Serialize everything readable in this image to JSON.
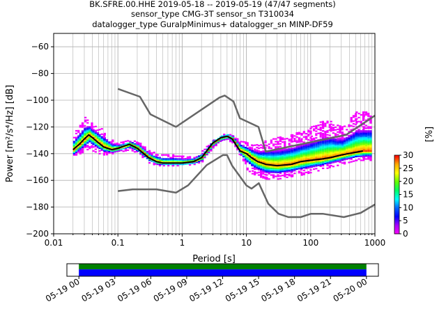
{
  "title": {
    "line1": "BK.SFRE.00.HHE   2019-05-18 -- 2019-05-19  (47/47 segments)",
    "line2": "sensor_type CMG-3T sensor_sn T310034",
    "line3": "datalogger_type GuralpMinimus+ datalogger_sn MINP-DF59"
  },
  "chart_data": [
    {
      "type": "heatmap",
      "kind": "probabilistic power spectral density",
      "xlabel": "Period [s]",
      "ylabel": "Power [m²/s⁴/Hz] [dB]",
      "xscale": "log",
      "xlim": [
        0.01,
        1000
      ],
      "ylim": [
        -200,
        -50
      ],
      "xticks": [
        0.01,
        0.1,
        1,
        10,
        100,
        1000
      ],
      "xtick_labels": [
        "0.01",
        "0.1",
        "1",
        "10",
        "100",
        "1000"
      ],
      "yticks": [
        -200,
        -180,
        -160,
        -140,
        -120,
        -100,
        -80,
        -60
      ],
      "ytick_labels": [
        "−200",
        "−180",
        "−160",
        "−140",
        "−120",
        "−100",
        "−80",
        "−60"
      ],
      "grid": true,
      "colorbar": {
        "label": "[%]",
        "min": 0,
        "max": 30,
        "ticks": [
          0,
          5,
          10,
          15,
          20,
          25,
          30
        ],
        "tick_labels": [
          "0",
          "5",
          "10",
          "15",
          "20",
          "25",
          "30"
        ],
        "colormap": [
          "#ff00ff",
          "#aa00ff",
          "#0000ff",
          "#0066ff",
          "#00ffff",
          "#00ff66",
          "#66ff00",
          "#ffff00",
          "#ffaa00",
          "#ff0000"
        ]
      },
      "mean_curve": {
        "color": "#000000",
        "x": [
          0.02,
          0.025,
          0.03,
          0.035,
          0.04,
          0.05,
          0.06,
          0.08,
          0.1,
          0.15,
          0.2,
          0.3,
          0.4,
          0.5,
          0.7,
          1.0,
          1.5,
          2,
          2.5,
          3,
          4,
          5,
          6,
          7,
          8,
          10,
          12,
          15,
          20,
          30,
          50,
          70,
          100,
          150,
          200,
          300,
          500,
          650
        ],
        "y": [
          -137,
          -133,
          -129,
          -126,
          -128,
          -132,
          -135,
          -137,
          -136,
          -133,
          -136,
          -143,
          -146,
          -147,
          -147,
          -147,
          -146,
          -143,
          -137,
          -132,
          -128,
          -127,
          -129,
          -134,
          -138,
          -140,
          -143,
          -146,
          -148,
          -149,
          -148,
          -146,
          -145,
          -144,
          -143,
          -141,
          -139,
          -138
        ]
      },
      "noise_models": {
        "color": "#666666",
        "high": {
          "x": [
            0.1,
            0.22,
            0.32,
            0.8,
            3.8,
            4.6,
            6.3,
            7.9,
            15.4,
            20,
            354.8,
            1000
          ],
          "y": [
            -91.5,
            -97.4,
            -110.5,
            -120,
            -98,
            -96.5,
            -101,
            -113.5,
            -120,
            -138.5,
            -126,
            -111.5
          ]
        },
        "low": {
          "x": [
            0.1,
            0.17,
            0.4,
            0.8,
            1.24,
            2.4,
            4.3,
            5,
            6,
            10,
            12,
            15.6,
            21.9,
            31.6,
            45,
            70,
            101,
            154,
            328,
            600,
            1000
          ],
          "y": [
            -168,
            -166.7,
            -166.7,
            -169.2,
            -163.7,
            -148.6,
            -141.1,
            -141.1,
            -149,
            -163.8,
            -166.2,
            -162.1,
            -177.5,
            -185,
            -187.5,
            -187.5,
            -185,
            -185,
            -187.5,
            -184.4,
            -178
          ]
        }
      },
      "density": {
        "columns": [
          {
            "period": 0.02,
            "min": -143,
            "max": -125,
            "mode": -137
          },
          {
            "period": 0.025,
            "min": -140,
            "max": -118,
            "mode": -133
          },
          {
            "period": 0.03,
            "min": -138,
            "max": -113,
            "mode": -129
          },
          {
            "period": 0.035,
            "min": -136,
            "max": -115,
            "mode": -126
          },
          {
            "period": 0.04,
            "min": -138,
            "max": -118,
            "mode": -128
          },
          {
            "period": 0.05,
            "min": -140,
            "max": -120,
            "mode": -132
          },
          {
            "period": 0.06,
            "min": -141,
            "max": -123,
            "mode": -135
          },
          {
            "period": 0.08,
            "min": -140,
            "max": -130,
            "mode": -137
          },
          {
            "period": 0.1,
            "min": -139,
            "max": -132,
            "mode": -136
          },
          {
            "period": 0.15,
            "min": -137,
            "max": -130,
            "mode": -133
          },
          {
            "period": 0.2,
            "min": -140,
            "max": -131,
            "mode": -136
          },
          {
            "period": 0.3,
            "min": -147,
            "max": -138,
            "mode": -143
          },
          {
            "period": 0.4,
            "min": -149,
            "max": -140,
            "mode": -146
          },
          {
            "period": 0.5,
            "min": -149,
            "max": -141,
            "mode": -147
          },
          {
            "period": 0.7,
            "min": -149,
            "max": -141,
            "mode": -147
          },
          {
            "period": 1.0,
            "min": -149,
            "max": -142,
            "mode": -147
          },
          {
            "period": 1.5,
            "min": -148,
            "max": -142,
            "mode": -146
          },
          {
            "period": 2,
            "min": -146,
            "max": -138,
            "mode": -143
          },
          {
            "period": 2.5,
            "min": -140,
            "max": -133,
            "mode": -137
          },
          {
            "period": 3,
            "min": -135,
            "max": -129,
            "mode": -132
          },
          {
            "period": 4,
            "min": -131,
            "max": -126,
            "mode": -128
          },
          {
            "period": 5,
            "min": -130,
            "max": -125,
            "mode": -127
          },
          {
            "period": 6,
            "min": -132,
            "max": -126,
            "mode": -129
          },
          {
            "period": 7,
            "min": -137,
            "max": -129,
            "mode": -134
          },
          {
            "period": 8,
            "min": -143,
            "max": -130,
            "mode": -138
          },
          {
            "period": 10,
            "min": -152,
            "max": -132,
            "mode": -140
          },
          {
            "period": 12,
            "min": -155,
            "max": -133,
            "mode": -143
          },
          {
            "period": 15,
            "min": -157,
            "max": -133,
            "mode": -146
          },
          {
            "period": 20,
            "min": -159,
            "max": -130,
            "mode": -148
          },
          {
            "period": 30,
            "min": -159,
            "max": -128,
            "mode": -149
          },
          {
            "period": 50,
            "min": -157,
            "max": -125,
            "mode": -148
          },
          {
            "period": 70,
            "min": -156,
            "max": -123,
            "mode": -146
          },
          {
            "period": 100,
            "min": -154,
            "max": -120,
            "mode": -145
          },
          {
            "period": 150,
            "min": -152,
            "max": -115,
            "mode": -144
          },
          {
            "period": 200,
            "min": -150,
            "max": -115,
            "mode": -143
          },
          {
            "period": 300,
            "min": -148,
            "max": -120,
            "mode": -141
          },
          {
            "period": 500,
            "min": -145,
            "max": -109,
            "mode": -139
          },
          {
            "period": 650,
            "min": -145,
            "max": -109,
            "mode": -138
          }
        ]
      }
    },
    {
      "type": "timeline",
      "kind": "data coverage",
      "xlim": [
        "2019-05-18 23:00",
        "2019-05-20 01:00"
      ],
      "xtick_labels": [
        "05-19 00",
        "05-19 03",
        "05-19 06",
        "05-19 09",
        "05-19 12",
        "05-19 15",
        "05-19 18",
        "05-19 21",
        "05-20 00"
      ],
      "xtick_hours": [
        0,
        3,
        6,
        9,
        12,
        15,
        18,
        21,
        24
      ],
      "bars": [
        {
          "band": "upper",
          "start_hour": 0,
          "end_hour": 24,
          "color": "#008000"
        },
        {
          "band": "lower",
          "start_hour": 0,
          "end_hour": 24,
          "color": "#0000ff"
        }
      ]
    }
  ]
}
